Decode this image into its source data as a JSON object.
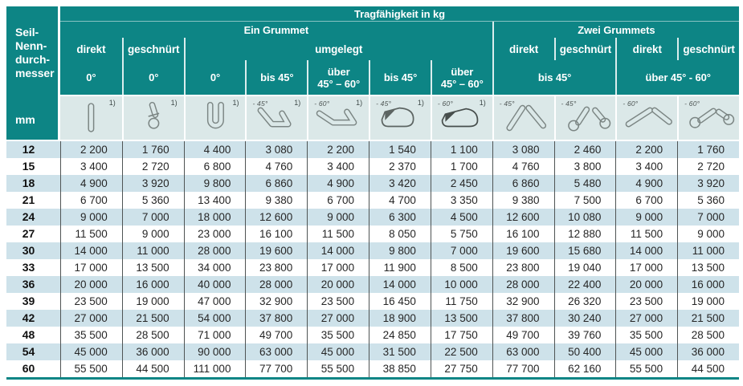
{
  "title": "Tragfähigkeit in kg",
  "row_header": {
    "label": "Seil-\nNenn-\ndurch-\nmesser",
    "unit": "mm"
  },
  "groups": {
    "ein_grummet": "Ein Grummet",
    "zwei_grummets": "Zwei Grummets"
  },
  "labels": {
    "direkt": "direkt",
    "geschnuert": "geschnürt",
    "umgelegt": "umgelegt",
    "deg0": "0°",
    "bis45": "bis 45°",
    "ueber45_60": "über\n45° – 60°",
    "bis45_span": "bis 45°",
    "ueber45_60_span": "über 45° - 60°"
  },
  "icons": [
    {
      "name": "sling-direct-vertical-icon",
      "angle": "",
      "footnote": "1)"
    },
    {
      "name": "sling-choked-icon",
      "angle": "",
      "footnote": "1)"
    },
    {
      "name": "sling-basket-u-icon",
      "angle": "",
      "footnote": "1)"
    },
    {
      "name": "sling-basket-45-icon",
      "angle": "45°",
      "footnote": "1)"
    },
    {
      "name": "sling-basket-60-icon",
      "angle": "60°",
      "footnote": "1)"
    },
    {
      "name": "sling-load-45-icon",
      "angle": "45°",
      "footnote": "1)"
    },
    {
      "name": "sling-load-60-icon",
      "angle": "60°",
      "footnote": "1)"
    },
    {
      "name": "two-slings-direct-45-icon",
      "angle": "45°",
      "footnote": ""
    },
    {
      "name": "two-slings-choked-45-icon",
      "angle": "45°",
      "footnote": ""
    },
    {
      "name": "two-slings-direct-60-icon",
      "angle": "60°",
      "footnote": ""
    },
    {
      "name": "two-slings-choked-60-icon",
      "angle": "60°",
      "footnote": ""
    }
  ],
  "table": {
    "unit_column": "mm",
    "rows": [
      {
        "mm": "12",
        "values": [
          "2 200",
          "1 760",
          "4 400",
          "3 080",
          "2 200",
          "1 540",
          "1 100",
          "3 080",
          "2 460",
          "2 200",
          "1 760"
        ]
      },
      {
        "mm": "15",
        "values": [
          "3 400",
          "2 720",
          "6 800",
          "4 760",
          "3 400",
          "2 370",
          "1 700",
          "4 760",
          "3 800",
          "3 400",
          "2 720"
        ]
      },
      {
        "mm": "18",
        "values": [
          "4 900",
          "3 920",
          "9 800",
          "6 860",
          "4 900",
          "3 420",
          "2 450",
          "6 860",
          "5 480",
          "4 900",
          "3 920"
        ]
      },
      {
        "mm": "21",
        "values": [
          "6 700",
          "5 360",
          "13 400",
          "9 380",
          "6 700",
          "4 700",
          "3 350",
          "9 380",
          "7 500",
          "6 700",
          "5 360"
        ]
      },
      {
        "mm": "24",
        "values": [
          "9 000",
          "7 000",
          "18 000",
          "12 600",
          "9 000",
          "6 300",
          "4 500",
          "12 600",
          "10 080",
          "9 000",
          "7 000"
        ]
      },
      {
        "mm": "27",
        "values": [
          "11 500",
          "9 000",
          "23 000",
          "16 100",
          "11 500",
          "8 050",
          "5 750",
          "16 100",
          "12 880",
          "11 500",
          "9 000"
        ]
      },
      {
        "mm": "30",
        "values": [
          "14 000",
          "11 000",
          "28 000",
          "19 600",
          "14 000",
          "9 800",
          "7 000",
          "19 600",
          "15 680",
          "14 000",
          "11 000"
        ]
      },
      {
        "mm": "33",
        "values": [
          "17 000",
          "13 500",
          "34 000",
          "23 800",
          "17 000",
          "11 900",
          "8 500",
          "23 800",
          "19 040",
          "17 000",
          "13 500"
        ]
      },
      {
        "mm": "36",
        "values": [
          "20 000",
          "16 000",
          "40 000",
          "28 000",
          "20 000",
          "14 000",
          "10 000",
          "28 000",
          "22 400",
          "20 000",
          "16 000"
        ]
      },
      {
        "mm": "39",
        "values": [
          "23 500",
          "19 000",
          "47 000",
          "32 900",
          "23 500",
          "16 450",
          "11 750",
          "32 900",
          "26 320",
          "23 500",
          "19 000"
        ]
      },
      {
        "mm": "42",
        "values": [
          "27 000",
          "21 500",
          "54 000",
          "37 800",
          "27 000",
          "18 900",
          "13 500",
          "37 800",
          "30 240",
          "27 000",
          "21 500"
        ]
      },
      {
        "mm": "48",
        "values": [
          "35 500",
          "28 500",
          "71 000",
          "49 700",
          "35 500",
          "24 850",
          "17 750",
          "49 700",
          "39 760",
          "35 500",
          "28 500"
        ]
      },
      {
        "mm": "54",
        "values": [
          "45 000",
          "36 000",
          "90 000",
          "63 000",
          "45 000",
          "31 500",
          "22 500",
          "63 000",
          "50 400",
          "45 000",
          "36 000"
        ]
      },
      {
        "mm": "60",
        "values": [
          "55 500",
          "44 500",
          "111 000",
          "77 700",
          "55 500",
          "38 850",
          "27 750",
          "77 700",
          "62 160",
          "55 500",
          "44 500"
        ]
      }
    ]
  },
  "colors": {
    "teal": "#0d8585",
    "icon_row_bg": "#dbe8e8",
    "stripe_blue": "#cee2ea",
    "separator_dark": "#4f5454",
    "bottom_rule": "#0d8585"
  }
}
